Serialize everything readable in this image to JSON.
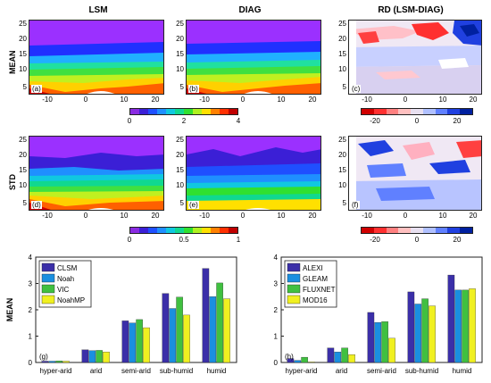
{
  "figure": {
    "col_titles": [
      "LSM",
      "DIAG",
      "RD (LSM-DIAG)"
    ],
    "row_titles": [
      "MEAN",
      "STD"
    ],
    "map_yticks": [
      "25",
      "20",
      "15",
      "10",
      "5"
    ],
    "map_xticks": [
      "-10",
      "0",
      "10",
      "20"
    ],
    "panel_labels": [
      "(a)",
      "(b)",
      "(c)",
      "(d)",
      "(e)",
      "(f)"
    ],
    "colorbars": {
      "mean_ticks": [
        "0",
        "2",
        "4"
      ],
      "rd_ticks": [
        "-20",
        "0",
        "20"
      ],
      "std_ticks": [
        "0",
        "0.5",
        "1"
      ],
      "rainbow": [
        "#8a2be2",
        "#3b1fd6",
        "#1f4fff",
        "#1f8fff",
        "#10c8e0",
        "#10d890",
        "#30e030",
        "#b0f020",
        "#ffe000",
        "#ff8000",
        "#ff3000",
        "#c00000"
      ],
      "diverging": [
        "#d00000",
        "#ff3030",
        "#ff8080",
        "#ffc0c0",
        "#e8e0f0",
        "#b0c0ff",
        "#6080ff",
        "#2040e0",
        "#0020a0"
      ]
    }
  },
  "chart_data": [
    {
      "type": "bar",
      "panel_label": "(g)",
      "ylabel": "MEAN",
      "ylim": [
        0,
        4
      ],
      "yticks": [
        0,
        1,
        2,
        3,
        4
      ],
      "categories": [
        "hyper-arid",
        "arid",
        "semi-arid",
        "sub-humid",
        "humid"
      ],
      "legend_position": "top-left",
      "series": [
        {
          "name": "CLSM",
          "color": "#3b2fa8",
          "values": [
            0.05,
            0.48,
            1.58,
            2.62,
            3.57
          ]
        },
        {
          "name": "Noah",
          "color": "#1a8fe0",
          "values": [
            0.05,
            0.45,
            1.5,
            2.05,
            2.5
          ]
        },
        {
          "name": "VIC",
          "color": "#40c040",
          "values": [
            0.06,
            0.46,
            1.63,
            2.48,
            3.02
          ]
        },
        {
          "name": "NoahMP",
          "color": "#f0f020",
          "values": [
            0.05,
            0.4,
            1.32,
            1.8,
            2.42
          ]
        }
      ]
    },
    {
      "type": "bar",
      "panel_label": "(h)",
      "ylabel": "",
      "ylim": [
        0,
        4
      ],
      "yticks": [
        0,
        1,
        2,
        3,
        4
      ],
      "categories": [
        "hyper-arid",
        "arid",
        "semi-arid",
        "sub-humid",
        "humid"
      ],
      "legend_position": "top-left",
      "series": [
        {
          "name": "ALEXI",
          "color": "#3b2fa8",
          "values": [
            0.15,
            0.55,
            1.9,
            2.68,
            3.32
          ]
        },
        {
          "name": "GLEAM",
          "color": "#1a8fe0",
          "values": [
            0.08,
            0.4,
            1.52,
            2.22,
            2.75
          ]
        },
        {
          "name": "FLUXNET",
          "color": "#40c040",
          "values": [
            0.2,
            0.55,
            1.55,
            2.42,
            2.75
          ]
        },
        {
          "name": "MOD16",
          "color": "#f0f020",
          "values": [
            0.02,
            0.3,
            0.92,
            2.15,
            2.8
          ]
        }
      ]
    }
  ]
}
